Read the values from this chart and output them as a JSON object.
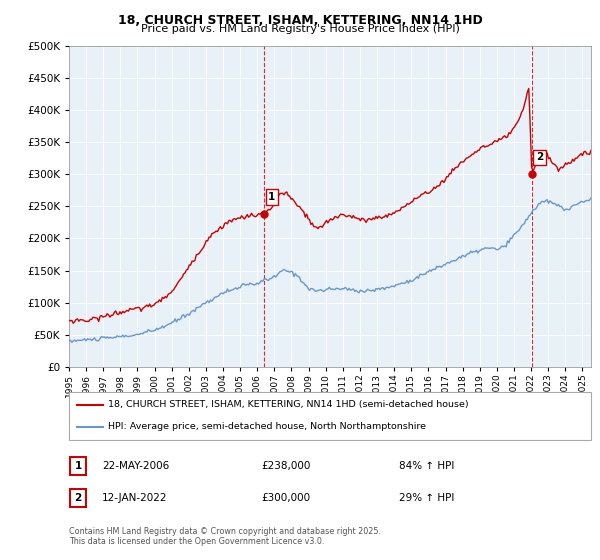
{
  "title1": "18, CHURCH STREET, ISHAM, KETTERING, NN14 1HD",
  "title2": "Price paid vs. HM Land Registry's House Price Index (HPI)",
  "legend_line1": "18, CHURCH STREET, ISHAM, KETTERING, NN14 1HD (semi-detached house)",
  "legend_line2": "HPI: Average price, semi-detached house, North Northamptonshire",
  "footer": "Contains HM Land Registry data © Crown copyright and database right 2025.\nThis data is licensed under the Open Government Licence v3.0.",
  "sale1_label": "1",
  "sale1_date": "22-MAY-2006",
  "sale1_price": "£238,000",
  "sale1_hpi": "84% ↑ HPI",
  "sale1_x": 2006.39,
  "sale1_y": 238000,
  "sale2_label": "2",
  "sale2_date": "12-JAN-2022",
  "sale2_price": "£300,000",
  "sale2_hpi": "29% ↑ HPI",
  "sale2_x": 2022.04,
  "sale2_y": 300000,
  "red_color": "#cc0000",
  "blue_color": "#6699cc",
  "chart_bg": "#e8f0f8",
  "vline_color": "#cc0000",
  "grid_color": "#ffffff",
  "bg_color": "#ffffff",
  "ylim": [
    0,
    500000
  ],
  "xlim_start": 1995,
  "xlim_end": 2025.5
}
